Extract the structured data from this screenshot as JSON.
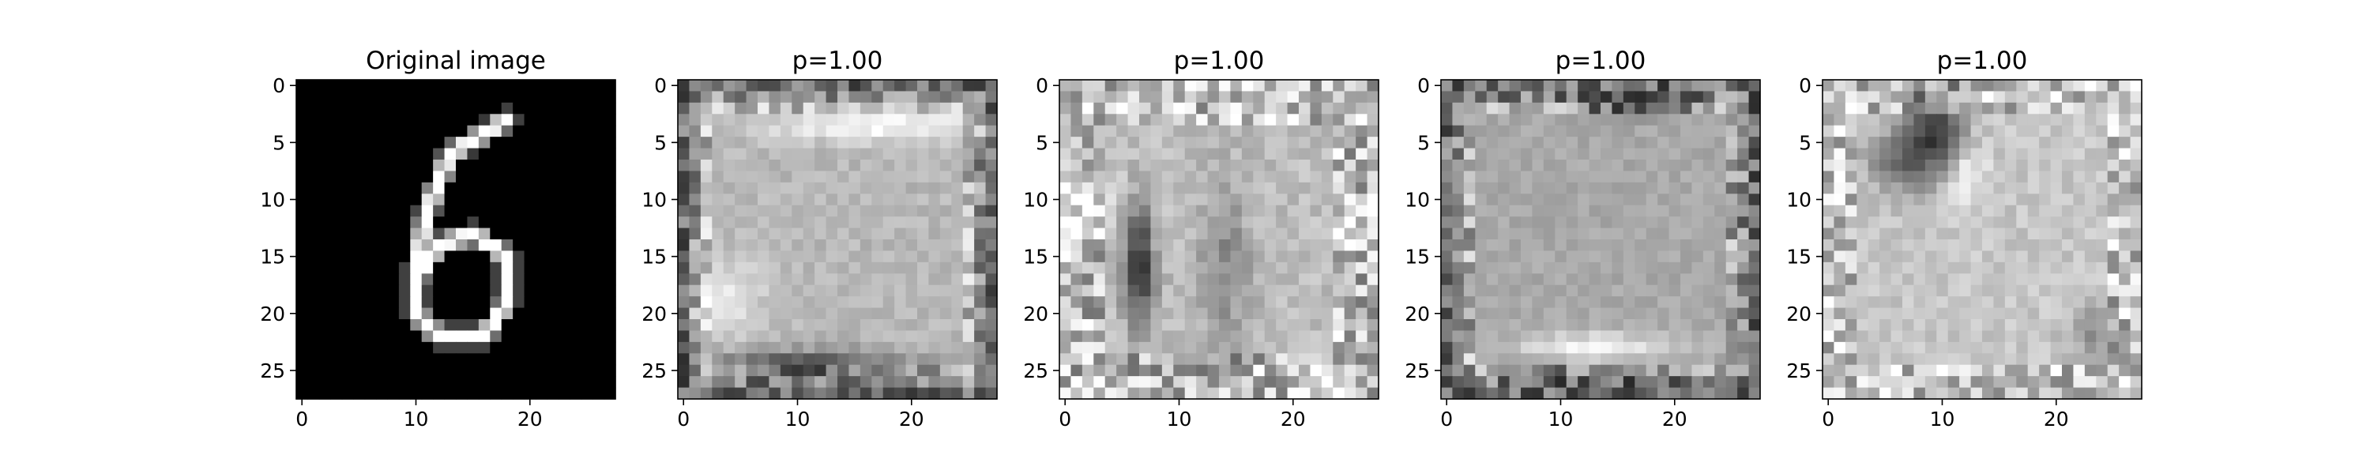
{
  "chart_data": [
    {
      "type": "heatmap",
      "title": "Original image",
      "colormap": "gray",
      "grid_size": 28,
      "xticks": [
        0,
        10,
        20
      ],
      "yticks": [
        0,
        5,
        10,
        15,
        20,
        25
      ],
      "xlim": [
        -0.5,
        27.5
      ],
      "ylim": [
        27.5,
        -0.5
      ],
      "content": "handwritten digit 6"
    },
    {
      "type": "heatmap",
      "title": "p=1.00",
      "colormap": "gray",
      "grid_size": 28,
      "xticks": [
        0,
        10,
        20
      ],
      "yticks": [
        0,
        5,
        10,
        15,
        20,
        25
      ],
      "xlim": [
        -0.5,
        27.5
      ],
      "ylim": [
        27.5,
        -0.5
      ]
    },
    {
      "type": "heatmap",
      "title": "p=1.00",
      "colormap": "gray",
      "grid_size": 28,
      "xticks": [
        0,
        10,
        20
      ],
      "yticks": [
        0,
        5,
        10,
        15,
        20,
        25
      ],
      "xlim": [
        -0.5,
        27.5
      ],
      "ylim": [
        27.5,
        -0.5
      ]
    },
    {
      "type": "heatmap",
      "title": "p=1.00",
      "colormap": "gray",
      "grid_size": 28,
      "xticks": [
        0,
        10,
        20
      ],
      "yticks": [
        0,
        5,
        10,
        15,
        20,
        25
      ],
      "xlim": [
        -0.5,
        27.5
      ],
      "ylim": [
        27.5,
        -0.5
      ]
    },
    {
      "type": "heatmap",
      "title": "p=1.00",
      "colormap": "gray",
      "grid_size": 28,
      "xticks": [
        0,
        10,
        20
      ],
      "yticks": [
        0,
        5,
        10,
        15,
        20,
        25
      ],
      "xlim": [
        -0.5,
        27.5
      ],
      "ylim": [
        27.5,
        -0.5
      ]
    }
  ]
}
